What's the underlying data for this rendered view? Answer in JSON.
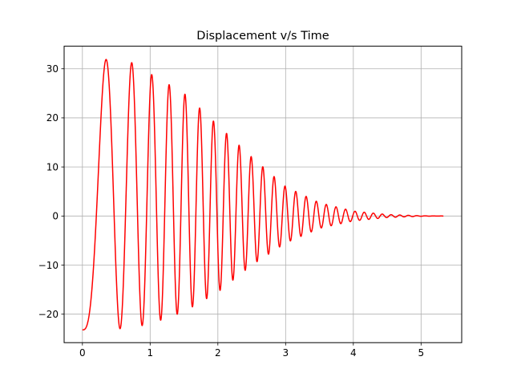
{
  "chart_data": {
    "type": "line",
    "title": "Displacement v/s Time",
    "xlabel": "",
    "ylabel": "",
    "xlim": [
      -0.27,
      5.6
    ],
    "ylim": [
      -25.8,
      34.6
    ],
    "x_ticks": [
      0,
      1,
      2,
      3,
      4,
      5
    ],
    "y_ticks": [
      -20,
      -10,
      0,
      10,
      20,
      30
    ],
    "grid": true,
    "legend": "none",
    "series": [
      {
        "color": "#ff0000",
        "x_range": [
          0,
          5.33
        ],
        "initial_value": -23.2,
        "peak_values": [
          {
            "x": 0.35,
            "y": 31.9
          },
          {
            "x": 0.6,
            "y": 31.6
          },
          {
            "x": 0.78,
            "y": 31.1
          },
          {
            "x": 1.0,
            "y": 29.0
          },
          {
            "x": 1.5,
            "y": 25.0
          },
          {
            "x": 2.0,
            "y": 18.5
          },
          {
            "x": 2.5,
            "y": 12.0
          },
          {
            "x": 3.0,
            "y": 6.0
          },
          {
            "x": 3.5,
            "y": 2.7
          },
          {
            "x": 4.0,
            "y": 1.0
          },
          {
            "x": 4.5,
            "y": 0.3
          },
          {
            "x": 5.0,
            "y": 0.05
          },
          {
            "x": 5.33,
            "y": 0.0
          }
        ],
        "trough_values": [
          {
            "x": 0.5,
            "y": -23.0
          },
          {
            "x": 0.7,
            "y": -22.8
          },
          {
            "x": 1.0,
            "y": -22.0
          },
          {
            "x": 1.5,
            "y": -19.5
          },
          {
            "x": 2.0,
            "y": -15.5
          },
          {
            "x": 2.5,
            "y": -10.0
          },
          {
            "x": 3.0,
            "y": -5.5
          },
          {
            "x": 3.5,
            "y": -2.5
          },
          {
            "x": 4.0,
            "y": -1.0
          },
          {
            "x": 4.5,
            "y": -0.3
          },
          {
            "x": 5.0,
            "y": -0.05
          },
          {
            "x": 5.33,
            "y": 0.0
          }
        ]
      }
    ]
  }
}
